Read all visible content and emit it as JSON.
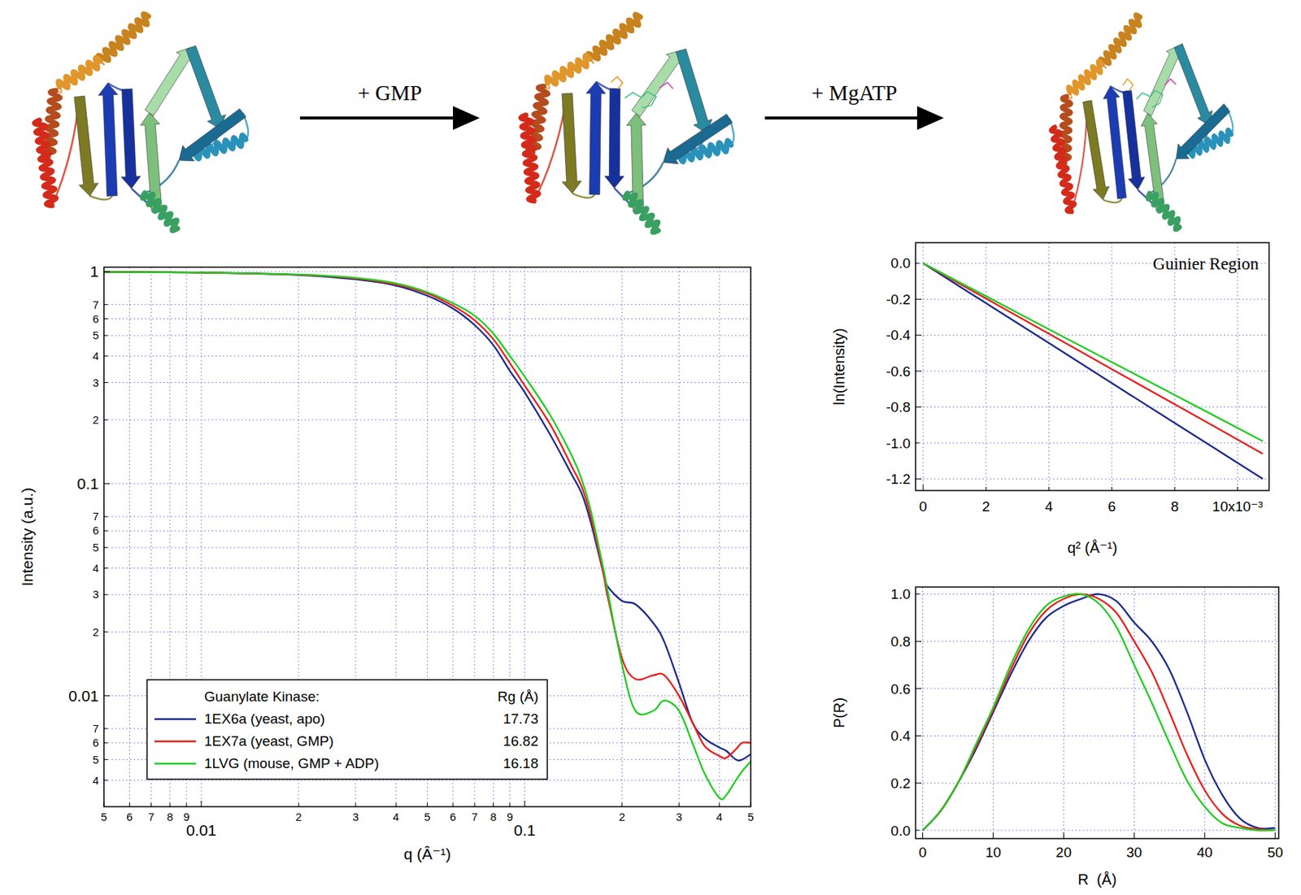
{
  "diagram": {
    "steps": [
      {
        "label": "+ GMP"
      },
      {
        "label": "+ MgATP"
      }
    ]
  },
  "chart_data": [
    {
      "type": "line",
      "log": true,
      "grid": true,
      "xlabel": "q (Â⁻¹)",
      "ylabel": "Intensity (a.u.)",
      "xlim": [
        0.005,
        0.5
      ],
      "ylim": [
        0.003,
        1.05
      ],
      "xticks": [
        {
          "value": 0.005,
          "label": "5"
        },
        {
          "value": 0.006,
          "label": "6"
        },
        {
          "value": 0.007,
          "label": "7"
        },
        {
          "value": 0.008,
          "label": "8"
        },
        {
          "value": 0.009,
          "label": "9"
        },
        0.01,
        {
          "value": 0.02,
          "label": "2"
        },
        {
          "value": 0.03,
          "label": "3"
        },
        {
          "value": 0.04,
          "label": "4"
        },
        {
          "value": 0.05,
          "label": "5"
        },
        {
          "value": 0.06,
          "label": "6"
        },
        {
          "value": 0.07,
          "label": "7"
        },
        {
          "value": 0.08,
          "label": "8"
        },
        {
          "value": 0.09,
          "label": "9"
        },
        0.1,
        {
          "value": 0.2,
          "label": "2"
        },
        {
          "value": 0.3,
          "label": "3"
        },
        {
          "value": 0.4,
          "label": "4"
        },
        {
          "value": 0.5,
          "label": "5"
        }
      ],
      "yticks": [
        1,
        {
          "value": 0.7,
          "label": "7"
        },
        {
          "value": 0.6,
          "label": "6"
        },
        {
          "value": 0.5,
          "label": "5"
        },
        {
          "value": 0.4,
          "label": "4"
        },
        {
          "value": 0.3,
          "label": "3"
        },
        {
          "value": 0.2,
          "label": "2"
        },
        0.1,
        {
          "value": 0.07,
          "label": "7"
        },
        {
          "value": 0.06,
          "label": "6"
        },
        {
          "value": 0.05,
          "label": "5"
        },
        {
          "value": 0.04,
          "label": "4"
        },
        {
          "value": 0.03,
          "label": "3"
        },
        {
          "value": 0.02,
          "label": "2"
        },
        0.01,
        {
          "value": 0.007,
          "label": "7"
        },
        {
          "value": 0.006,
          "label": "6"
        },
        {
          "value": 0.005,
          "label": "5"
        },
        {
          "value": 0.004,
          "label": "4"
        }
      ],
      "legend": "bottom-left",
      "legend_title": "Guanylate Kinase:",
      "legend_value_title": "Rg (Å)",
      "x": [
        0.005,
        0.01,
        0.02,
        0.03,
        0.04,
        0.05,
        0.06,
        0.07,
        0.08,
        0.09,
        0.1,
        0.12,
        0.14,
        0.15,
        0.16,
        0.175,
        0.18,
        0.2,
        0.22,
        0.25,
        0.27,
        0.3,
        0.33,
        0.36,
        0.4,
        0.42,
        0.45,
        0.47,
        0.5
      ],
      "series": [
        {
          "name": "1EX6a (yeast, apo)",
          "color": "#1c2a8c",
          "rg": 17.73,
          "values": [
            0.997,
            0.99,
            0.965,
            0.92,
            0.86,
            0.77,
            0.67,
            0.56,
            0.45,
            0.34,
            0.27,
            0.17,
            0.11,
            0.09,
            0.066,
            0.038,
            0.033,
            0.028,
            0.027,
            0.022,
            0.018,
            0.0115,
            0.0075,
            0.0063,
            0.0057,
            0.0055,
            0.005,
            0.005,
            0.0053
          ]
        },
        {
          "name": "1EX7a (yeast, GMP)",
          "color": "#e8201a",
          "rg": 16.82,
          "values": [
            0.997,
            0.99,
            0.968,
            0.93,
            0.87,
            0.79,
            0.69,
            0.59,
            0.48,
            0.37,
            0.29,
            0.19,
            0.12,
            0.097,
            0.07,
            0.038,
            0.03,
            0.015,
            0.012,
            0.0125,
            0.0125,
            0.01,
            0.0075,
            0.0058,
            0.0052,
            0.0051,
            0.0056,
            0.006,
            0.006
          ]
        },
        {
          "name": "1LVG (mouse, GMP + ADP)",
          "color": "#22cc22",
          "rg": 16.18,
          "values": [
            0.997,
            0.99,
            0.97,
            0.935,
            0.88,
            0.8,
            0.71,
            0.62,
            0.51,
            0.4,
            0.32,
            0.21,
            0.135,
            0.105,
            0.075,
            0.04,
            0.032,
            0.014,
            0.0085,
            0.0085,
            0.0095,
            0.0085,
            0.006,
            0.0043,
            0.0033,
            0.0034,
            0.004,
            0.0044,
            0.0049
          ]
        }
      ]
    },
    {
      "type": "line",
      "grid": true,
      "annotation": "Guinier Region",
      "xlabel": "q² (Å⁻¹)",
      "ylabel": "ln(Intensity)",
      "xlim": [
        -0.00024,
        0.011
      ],
      "ylim": [
        -1.265,
        0.115
      ],
      "xticks": [
        0,
        {
          "value": 0.002,
          "label": "2"
        },
        {
          "value": 0.004,
          "label": "4"
        },
        {
          "value": 0.006,
          "label": "6"
        },
        {
          "value": 0.008,
          "label": "8"
        },
        {
          "value": 0.01,
          "label": "10x10⁻³"
        }
      ],
      "yticks": [
        {
          "value": 0,
          "label": "0.0"
        },
        -0.2,
        -0.4,
        -0.6,
        -0.8,
        {
          "value": -1,
          "label": "-1.0"
        },
        -1.2
      ],
      "x": [
        0,
        0.002,
        0.004,
        0.006,
        0.008,
        0.0108
      ],
      "series": [
        {
          "color": "#1c2a8c",
          "values": [
            0,
            -0.222,
            -0.444,
            -0.667,
            -0.889,
            -1.2
          ]
        },
        {
          "color": "#e8201a",
          "values": [
            0,
            -0.196,
            -0.392,
            -0.589,
            -0.785,
            -1.06
          ]
        },
        {
          "color": "#22cc22",
          "values": [
            0,
            -0.183,
            -0.367,
            -0.55,
            -0.733,
            -0.99
          ]
        }
      ]
    },
    {
      "type": "line",
      "grid": true,
      "xlabel": "R  (Å)",
      "ylabel": "P(R)",
      "xlim": [
        -1,
        50.5
      ],
      "ylim": [
        -0.035,
        1.03
      ],
      "xticks": [
        0,
        10,
        20,
        30,
        40,
        50
      ],
      "yticks": [
        {
          "value": 0,
          "label": "0.0"
        },
        0.2,
        0.4,
        0.6,
        0.8,
        {
          "value": 1,
          "label": "1.0"
        }
      ],
      "x": [
        0,
        2.5,
        5,
        7.5,
        10,
        12.5,
        15,
        17.5,
        20,
        22.5,
        25,
        27.5,
        30,
        32.5,
        35,
        37.5,
        40,
        42.5,
        45,
        47.5,
        50
      ],
      "series": [
        {
          "color": "#1c2a8c",
          "values": [
            0,
            0.08,
            0.2,
            0.34,
            0.5,
            0.66,
            0.8,
            0.9,
            0.95,
            0.98,
            1.0,
            0.97,
            0.88,
            0.8,
            0.68,
            0.5,
            0.3,
            0.15,
            0.05,
            0.01,
            0.01
          ]
        },
        {
          "color": "#e8201a",
          "values": [
            0,
            0.08,
            0.2,
            0.35,
            0.51,
            0.68,
            0.83,
            0.93,
            0.98,
            1.0,
            0.98,
            0.92,
            0.8,
            0.67,
            0.5,
            0.32,
            0.17,
            0.07,
            0.02,
            0.005,
            0
          ]
        },
        {
          "color": "#22cc22",
          "values": [
            0,
            0.08,
            0.2,
            0.36,
            0.52,
            0.7,
            0.85,
            0.95,
            0.99,
            1.0,
            0.96,
            0.86,
            0.7,
            0.54,
            0.37,
            0.21,
            0.1,
            0.03,
            0.01,
            0,
            0
          ]
        }
      ]
    }
  ]
}
